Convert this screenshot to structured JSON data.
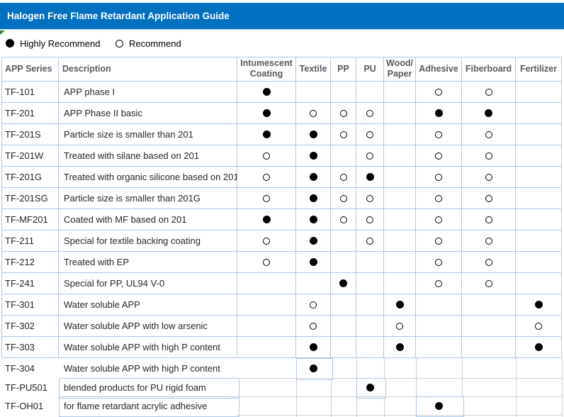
{
  "title_bar": {
    "text": "Halogen Free Flame Retardant Application Guide"
  },
  "legend": {
    "items": [
      {
        "symbol": "filled-circle",
        "label": "Highly Recommend"
      },
      {
        "symbol": "hollow-circle",
        "label": "Recommend"
      }
    ]
  },
  "table": {
    "columns": [
      {
        "key": "series",
        "label": "APP Series"
      },
      {
        "key": "description",
        "label": "Description"
      },
      {
        "key": "intumescent_coating",
        "label": "Intumescent\nCoating"
      },
      {
        "key": "textile",
        "label": "Textile"
      },
      {
        "key": "pp",
        "label": "PP"
      },
      {
        "key": "pu",
        "label": "PU"
      },
      {
        "key": "wood_paper",
        "label": "Wood/\nPaper"
      },
      {
        "key": "adhesive",
        "label": "Adhesive"
      },
      {
        "key": "fiberboard",
        "label": "Fiberboard"
      },
      {
        "key": "fertilizer",
        "label": "Fertilizer"
      }
    ],
    "marks_legend": {
      "H": "highly_recommend (filled circle)",
      "R": "recommend (hollow circle)",
      "": "not applicable"
    },
    "mark_column_order": [
      "intumescent_coating",
      "textile",
      "pp",
      "pu",
      "wood_paper",
      "adhesive",
      "fiberboard",
      "fertilizer"
    ],
    "rows": [
      {
        "series": "TF-101",
        "description": "APP phase I",
        "marks": [
          "H",
          "",
          "",
          "",
          "",
          "R",
          "R",
          ""
        ]
      },
      {
        "series": "TF-201",
        "description": "APP Phase II basic",
        "marks": [
          "H",
          "R",
          "R",
          "R",
          "",
          "H",
          "H",
          ""
        ]
      },
      {
        "series": "TF-201S",
        "description": "Particle size is smaller than 201",
        "marks": [
          "H",
          "H",
          "R",
          "R",
          "",
          "R",
          "R",
          ""
        ]
      },
      {
        "series": "TF-201W",
        "description": "Treated with silane based on 201",
        "marks": [
          "R",
          "H",
          "",
          "R",
          "",
          "R",
          "R",
          ""
        ]
      },
      {
        "series": "TF-201G",
        "description": "Treated with organic silicone based on 201",
        "marks": [
          "R",
          "H",
          "R",
          "H",
          "",
          "R",
          "R",
          ""
        ]
      },
      {
        "series": "TF-201SG",
        "description": "Particle size is smaller than 201G",
        "marks": [
          "R",
          "H",
          "R",
          "R",
          "",
          "R",
          "R",
          ""
        ]
      },
      {
        "series": "TF-MF201",
        "description": "Coated with MF based on 201",
        "marks": [
          "H",
          "H",
          "R",
          "R",
          "",
          "R",
          "R",
          ""
        ]
      },
      {
        "series": "TF-211",
        "description": "Special for textile backing coating",
        "marks": [
          "R",
          "H",
          "",
          "R",
          "",
          "R",
          "R",
          ""
        ]
      },
      {
        "series": "TF-212",
        "description": "Treated with EP",
        "marks": [
          "R",
          "H",
          "",
          "",
          "",
          "R",
          "R",
          ""
        ]
      },
      {
        "series": "TF-241",
        "description": "Special for PP, UL94 V-0",
        "marks": [
          "",
          "",
          "H",
          "",
          "",
          "R",
          "R",
          ""
        ]
      },
      {
        "series": "TF-301",
        "description": "Water soluble APP",
        "marks": [
          "",
          "R",
          "",
          "",
          "H",
          "",
          "",
          "H"
        ]
      },
      {
        "series": "TF-302",
        "description": "Water soluble APP with low arsenic",
        "marks": [
          "",
          "R",
          "",
          "",
          "R",
          "",
          "",
          "R"
        ]
      },
      {
        "series": "TF-303",
        "description": "Water soluble APP with high P content",
        "marks": [
          "",
          "H",
          "",
          "",
          "H",
          "",
          "",
          "H"
        ]
      },
      {
        "series": "TF-304",
        "description": "Water soluble APP with high P content",
        "marks": [
          "",
          "H",
          "",
          "",
          "",
          "",
          "",
          ""
        ]
      },
      {
        "series": "TF-PU501",
        "description": "blended products for PU rigid foam",
        "marks": [
          "",
          "",
          "",
          "H",
          "",
          "",
          "",
          ""
        ]
      },
      {
        "series": "TF-OH01",
        "description": "for flame retardant acrylic adhesive",
        "marks": [
          "",
          "",
          "",
          "",
          "",
          "H",
          "",
          ""
        ]
      }
    ]
  },
  "colors": {
    "title_bar_bg": "#0070C0",
    "title_text": "#FFFFFF",
    "table_border_blue": "#AEC8E6",
    "gridline_gray": "#CFCFCF",
    "header_text": "#595959",
    "body_text": "#262626",
    "flag_green": "#358339",
    "mark_black": "#000000"
  }
}
